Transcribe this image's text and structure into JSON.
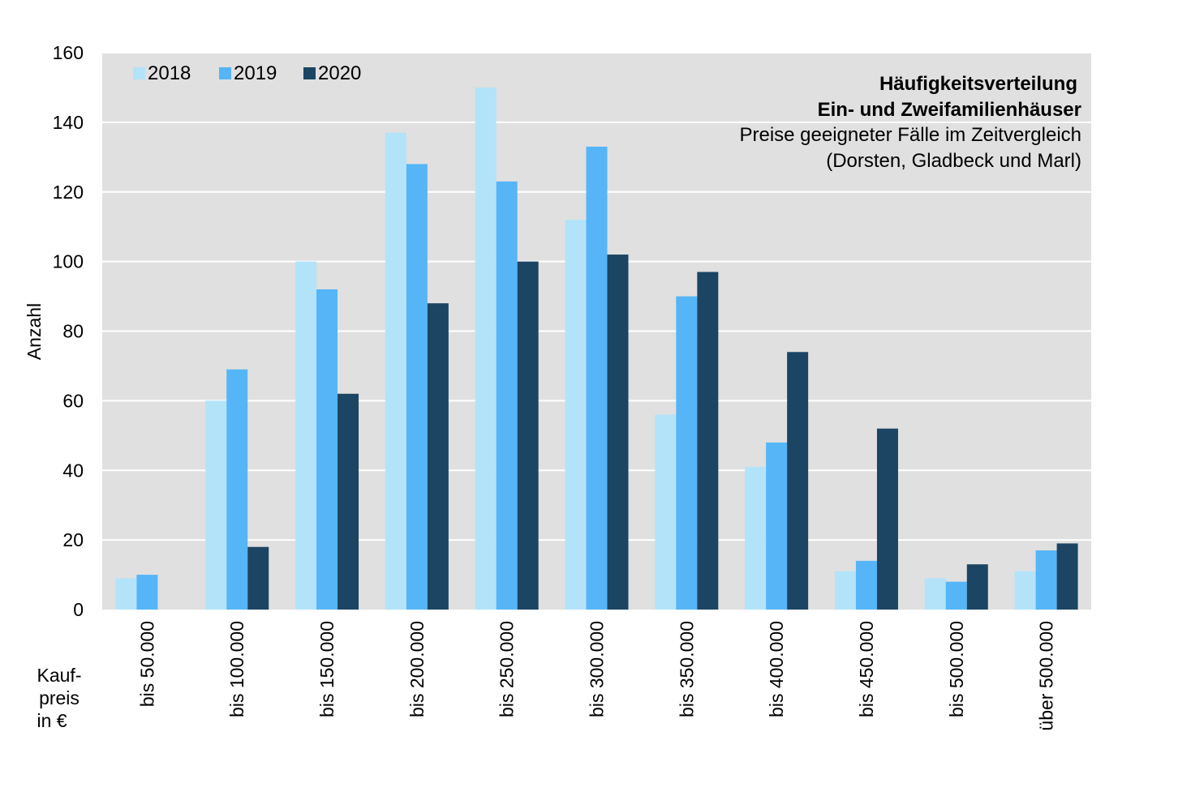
{
  "chart_data": {
    "type": "bar",
    "title": "Häufigkeitsverteilung",
    "title_line2": "Ein- und Zweifamilienhäuser",
    "subtitle": "Preise geeigneter Fälle im Zeitvergleich",
    "subtitle_line2": "(Dorsten, Gladbeck und Marl)",
    "ylabel": "Anzahl",
    "xlabel_lines": [
      "Kauf-",
      "preis",
      "in €"
    ],
    "ylim": [
      0,
      160
    ],
    "yticks": [
      0,
      20,
      40,
      60,
      80,
      100,
      120,
      140,
      160
    ],
    "categories": [
      "bis 50.000",
      "bis 100.000",
      "bis 150.000",
      "bis 200.000",
      "bis 250.000",
      "bis 300.000",
      "bis 350.000",
      "bis 400.000",
      "bis 450.000",
      "bis 500.000",
      "über 500.000"
    ],
    "series": [
      {
        "name": "2018",
        "color": "#b3e3f9",
        "values": [
          9,
          60,
          100,
          137,
          150,
          112,
          56,
          41,
          11,
          9,
          11
        ]
      },
      {
        "name": "2019",
        "color": "#55b5f7",
        "values": [
          10,
          69,
          92,
          128,
          123,
          133,
          90,
          48,
          14,
          8,
          17
        ]
      },
      {
        "name": "2020",
        "color": "#1c4563",
        "values": [
          0,
          18,
          62,
          88,
          100,
          102,
          97,
          74,
          52,
          13,
          19
        ]
      }
    ],
    "grid": true,
    "legend_position": "top-left",
    "plot_background": "#e0e0e0"
  }
}
